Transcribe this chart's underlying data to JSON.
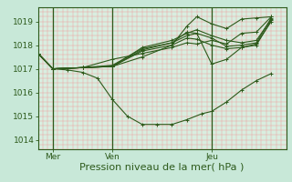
{
  "background_color": "#c8e8d8",
  "plot_bg_color": "#d8eee0",
  "grid_color_minor": "#f0a0a0",
  "grid_color_major": "#e08080",
  "line_color": "#2d5a1b",
  "marker_color": "#2d5a1b",
  "ylabel_ticks": [
    1014,
    1015,
    1016,
    1017,
    1018,
    1019
  ],
  "xlim": [
    0,
    100
  ],
  "ylim": [
    1013.6,
    1019.6
  ],
  "xlabel": "Pression niveau de la mer( hPa )",
  "xlabel_fontsize": 8,
  "tick_fontsize": 6.5,
  "xtick_labels": [
    "Mer",
    "Ven",
    "Jeu"
  ],
  "xtick_positions": [
    6,
    30,
    70
  ],
  "vline_positions": [
    6,
    30,
    70
  ],
  "series": [
    [
      0,
      1017.65,
      6,
      1017.0,
      12,
      1016.95,
      18,
      1016.85,
      24,
      1016.6,
      30,
      1015.7,
      36,
      1015.0,
      42,
      1014.65,
      48,
      1014.65,
      54,
      1014.65,
      60,
      1014.85,
      66,
      1015.1,
      70,
      1015.2,
      76,
      1015.6,
      82,
      1016.1,
      88,
      1016.5,
      94,
      1016.8
    ],
    [
      0,
      1017.65,
      6,
      1017.0,
      18,
      1017.05,
      30,
      1017.1,
      42,
      1017.5,
      54,
      1018.0,
      60,
      1018.8,
      64,
      1019.2,
      70,
      1018.9,
      76,
      1018.7,
      82,
      1019.1,
      88,
      1019.15,
      94,
      1019.2
    ],
    [
      0,
      1017.65,
      6,
      1017.0,
      18,
      1017.05,
      30,
      1017.1,
      42,
      1017.8,
      54,
      1018.1,
      60,
      1018.4,
      64,
      1018.5,
      70,
      1017.2,
      76,
      1017.4,
      82,
      1017.9,
      88,
      1018.05,
      94,
      1019.0
    ],
    [
      0,
      1017.65,
      6,
      1017.0,
      18,
      1017.05,
      30,
      1017.1,
      42,
      1017.9,
      54,
      1018.2,
      60,
      1018.5,
      64,
      1018.65,
      70,
      1018.4,
      76,
      1018.2,
      82,
      1018.1,
      88,
      1018.2,
      94,
      1019.1
    ],
    [
      0,
      1017.65,
      6,
      1017.0,
      18,
      1017.05,
      30,
      1017.15,
      42,
      1017.85,
      54,
      1018.1,
      60,
      1018.55,
      64,
      1018.5,
      70,
      1018.3,
      76,
      1017.95,
      82,
      1018.0,
      88,
      1018.1,
      94,
      1019.15
    ],
    [
      0,
      1017.65,
      6,
      1017.0,
      18,
      1017.05,
      30,
      1017.1,
      42,
      1017.75,
      54,
      1018.0,
      60,
      1018.3,
      64,
      1018.25,
      70,
      1018.0,
      76,
      1017.85,
      82,
      1017.9,
      88,
      1018.0,
      94,
      1019.05
    ],
    [
      0,
      1017.65,
      6,
      1017.0,
      18,
      1017.05,
      30,
      1017.4,
      42,
      1017.65,
      54,
      1017.9,
      60,
      1018.1,
      64,
      1018.05,
      70,
      1018.2,
      76,
      1018.05,
      82,
      1018.5,
      88,
      1018.55,
      94,
      1019.2
    ]
  ]
}
